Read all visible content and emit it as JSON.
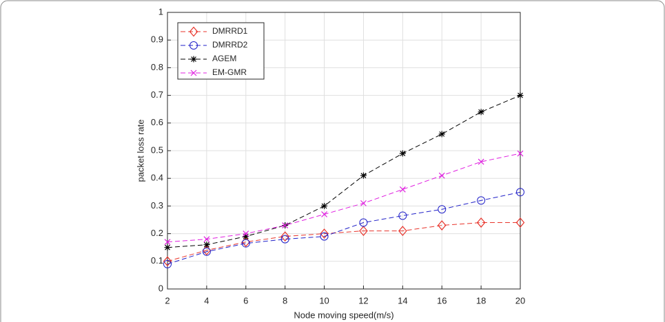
{
  "chart_data": {
    "type": "line",
    "x_label": "Node moving speed(m/s)",
    "y_label": "packet loss rate",
    "x": [
      2,
      4,
      6,
      8,
      10,
      12,
      14,
      16,
      18,
      20
    ],
    "xlim": [
      2,
      20
    ],
    "xticks": [
      2,
      4,
      6,
      8,
      10,
      12,
      14,
      16,
      18,
      20
    ],
    "ylim": [
      0,
      1
    ],
    "yticks": [
      0,
      0.1,
      0.2,
      0.3,
      0.4,
      0.5,
      0.6,
      0.7,
      0.8,
      0.9,
      1
    ],
    "grid": true,
    "legend": "upper left",
    "series": [
      {
        "name": "DMRRD1",
        "color": "#e8332a",
        "marker": "diamond",
        "values": [
          0.1,
          0.14,
          0.17,
          0.19,
          0.2,
          0.21,
          0.21,
          0.23,
          0.24,
          0.24
        ]
      },
      {
        "name": "DMRRD2",
        "color": "#1f1fc8",
        "marker": "circle",
        "values": [
          0.09,
          0.135,
          0.165,
          0.18,
          0.19,
          0.24,
          0.265,
          0.288,
          0.32,
          0.35
        ]
      },
      {
        "name": "AGEM",
        "color": "#000000",
        "marker": "star",
        "values": [
          0.15,
          0.16,
          0.19,
          0.23,
          0.3,
          0.41,
          0.49,
          0.56,
          0.64,
          0.7
        ]
      },
      {
        "name": "EM-GMR",
        "color": "#e020e0",
        "marker": "x",
        "values": [
          0.17,
          0.18,
          0.2,
          0.23,
          0.27,
          0.31,
          0.36,
          0.41,
          0.46,
          0.49
        ]
      }
    ]
  }
}
